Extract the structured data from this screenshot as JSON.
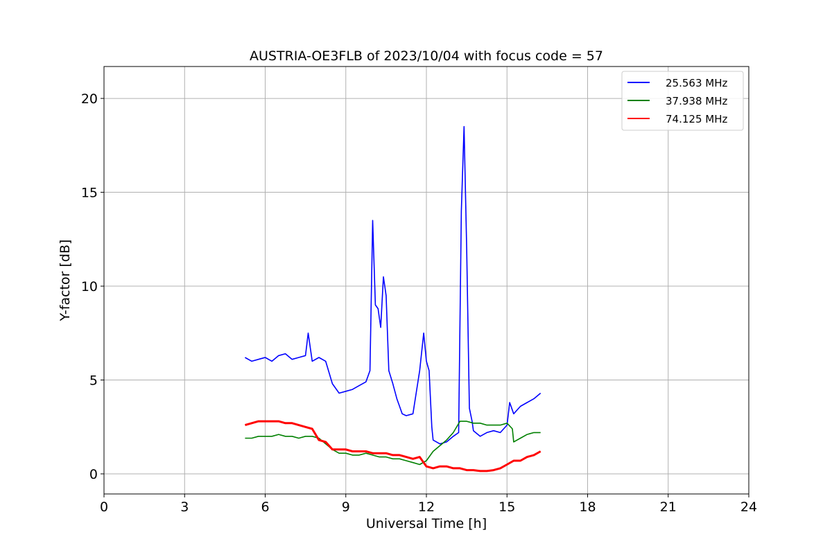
{
  "chart_data": {
    "type": "line",
    "title": "AUSTRIA-OE3FLB of 2023/10/04 with focus code = 57",
    "xlabel": "Universal Time [h]",
    "ylabel": "Y-factor [dB]",
    "xlim": [
      0,
      24
    ],
    "ylim": [
      -1.07,
      21.7
    ],
    "xticks": [
      0,
      3,
      6,
      9,
      12,
      15,
      18,
      21,
      24
    ],
    "yticks": [
      0,
      5,
      10,
      15,
      20
    ],
    "xtick_labels": [
      "0",
      "3",
      "6",
      "9",
      "12",
      "15",
      "18",
      "21",
      "24"
    ],
    "ytick_labels": [
      "0",
      "5",
      "10",
      "15",
      "20"
    ],
    "grid": true,
    "legend_position": "top-right",
    "series": [
      {
        "name": "25.563 MHz",
        "color": "#0000ff",
        "x": [
          5.25,
          5.5,
          5.75,
          6.0,
          6.25,
          6.5,
          6.75,
          7.0,
          7.25,
          7.5,
          7.6,
          7.75,
          8.0,
          8.25,
          8.5,
          8.75,
          9.0,
          9.25,
          9.5,
          9.75,
          9.9,
          10.0,
          10.1,
          10.2,
          10.3,
          10.4,
          10.5,
          10.6,
          10.75,
          10.9,
          11.0,
          11.1,
          11.25,
          11.5,
          11.75,
          11.9,
          12.0,
          12.1,
          12.2,
          12.25,
          12.5,
          12.75,
          13.0,
          13.2,
          13.3,
          13.4,
          13.5,
          13.6,
          13.7,
          13.75,
          14.0,
          14.25,
          14.5,
          14.75,
          15.0,
          15.1,
          15.25,
          15.5,
          15.75,
          16.0,
          16.25
        ],
        "y": [
          6.2,
          6.0,
          6.1,
          6.2,
          6.0,
          6.3,
          6.4,
          6.1,
          6.2,
          6.3,
          7.5,
          6.0,
          6.2,
          6.0,
          4.8,
          4.3,
          4.4,
          4.5,
          4.7,
          4.9,
          5.5,
          13.5,
          9.0,
          8.8,
          7.8,
          10.5,
          9.5,
          5.5,
          4.8,
          4.0,
          3.6,
          3.2,
          3.1,
          3.2,
          5.5,
          7.5,
          6.0,
          5.5,
          2.5,
          1.8,
          1.6,
          1.7,
          2.0,
          2.2,
          14.0,
          18.5,
          12.0,
          3.5,
          2.8,
          2.3,
          2.0,
          2.2,
          2.3,
          2.2,
          2.6,
          3.8,
          3.2,
          3.6,
          3.8,
          4.0,
          4.3
        ]
      },
      {
        "name": "37.938 MHz",
        "color": "#008000",
        "x": [
          5.25,
          5.5,
          5.75,
          6.0,
          6.25,
          6.5,
          6.75,
          7.0,
          7.25,
          7.5,
          7.75,
          8.0,
          8.25,
          8.5,
          8.75,
          9.0,
          9.25,
          9.5,
          9.75,
          10.0,
          10.25,
          10.5,
          10.75,
          11.0,
          11.25,
          11.5,
          11.75,
          12.0,
          12.25,
          12.5,
          12.75,
          13.0,
          13.25,
          13.5,
          13.75,
          14.0,
          14.25,
          14.5,
          14.75,
          15.0,
          15.2,
          15.25,
          15.5,
          15.75,
          16.0,
          16.25
        ],
        "y": [
          1.9,
          1.9,
          2.0,
          2.0,
          2.0,
          2.1,
          2.0,
          2.0,
          1.9,
          2.0,
          2.0,
          1.9,
          1.6,
          1.3,
          1.1,
          1.1,
          1.0,
          1.0,
          1.1,
          1.0,
          0.9,
          0.9,
          0.8,
          0.8,
          0.7,
          0.6,
          0.5,
          0.7,
          1.2,
          1.5,
          1.8,
          2.2,
          2.8,
          2.8,
          2.7,
          2.7,
          2.6,
          2.6,
          2.6,
          2.7,
          2.4,
          1.7,
          1.9,
          2.1,
          2.2,
          2.2
        ]
      },
      {
        "name": "74.125 MHz",
        "color": "#ff0000",
        "x": [
          5.25,
          5.5,
          5.75,
          6.0,
          6.25,
          6.5,
          6.75,
          7.0,
          7.25,
          7.5,
          7.75,
          8.0,
          8.25,
          8.5,
          8.75,
          9.0,
          9.25,
          9.5,
          9.75,
          10.0,
          10.25,
          10.5,
          10.75,
          11.0,
          11.25,
          11.5,
          11.75,
          12.0,
          12.25,
          12.5,
          12.75,
          13.0,
          13.25,
          13.5,
          13.75,
          14.0,
          14.25,
          14.5,
          14.75,
          15.0,
          15.25,
          15.5,
          15.75,
          16.0,
          16.25
        ],
        "y": [
          2.6,
          2.7,
          2.8,
          2.8,
          2.8,
          2.8,
          2.7,
          2.7,
          2.6,
          2.5,
          2.4,
          1.8,
          1.7,
          1.3,
          1.3,
          1.3,
          1.2,
          1.2,
          1.2,
          1.1,
          1.1,
          1.1,
          1.0,
          1.0,
          0.9,
          0.8,
          0.9,
          0.4,
          0.3,
          0.4,
          0.4,
          0.3,
          0.3,
          0.2,
          0.2,
          0.15,
          0.15,
          0.2,
          0.3,
          0.5,
          0.7,
          0.7,
          0.9,
          1.0,
          1.2
        ]
      }
    ]
  }
}
